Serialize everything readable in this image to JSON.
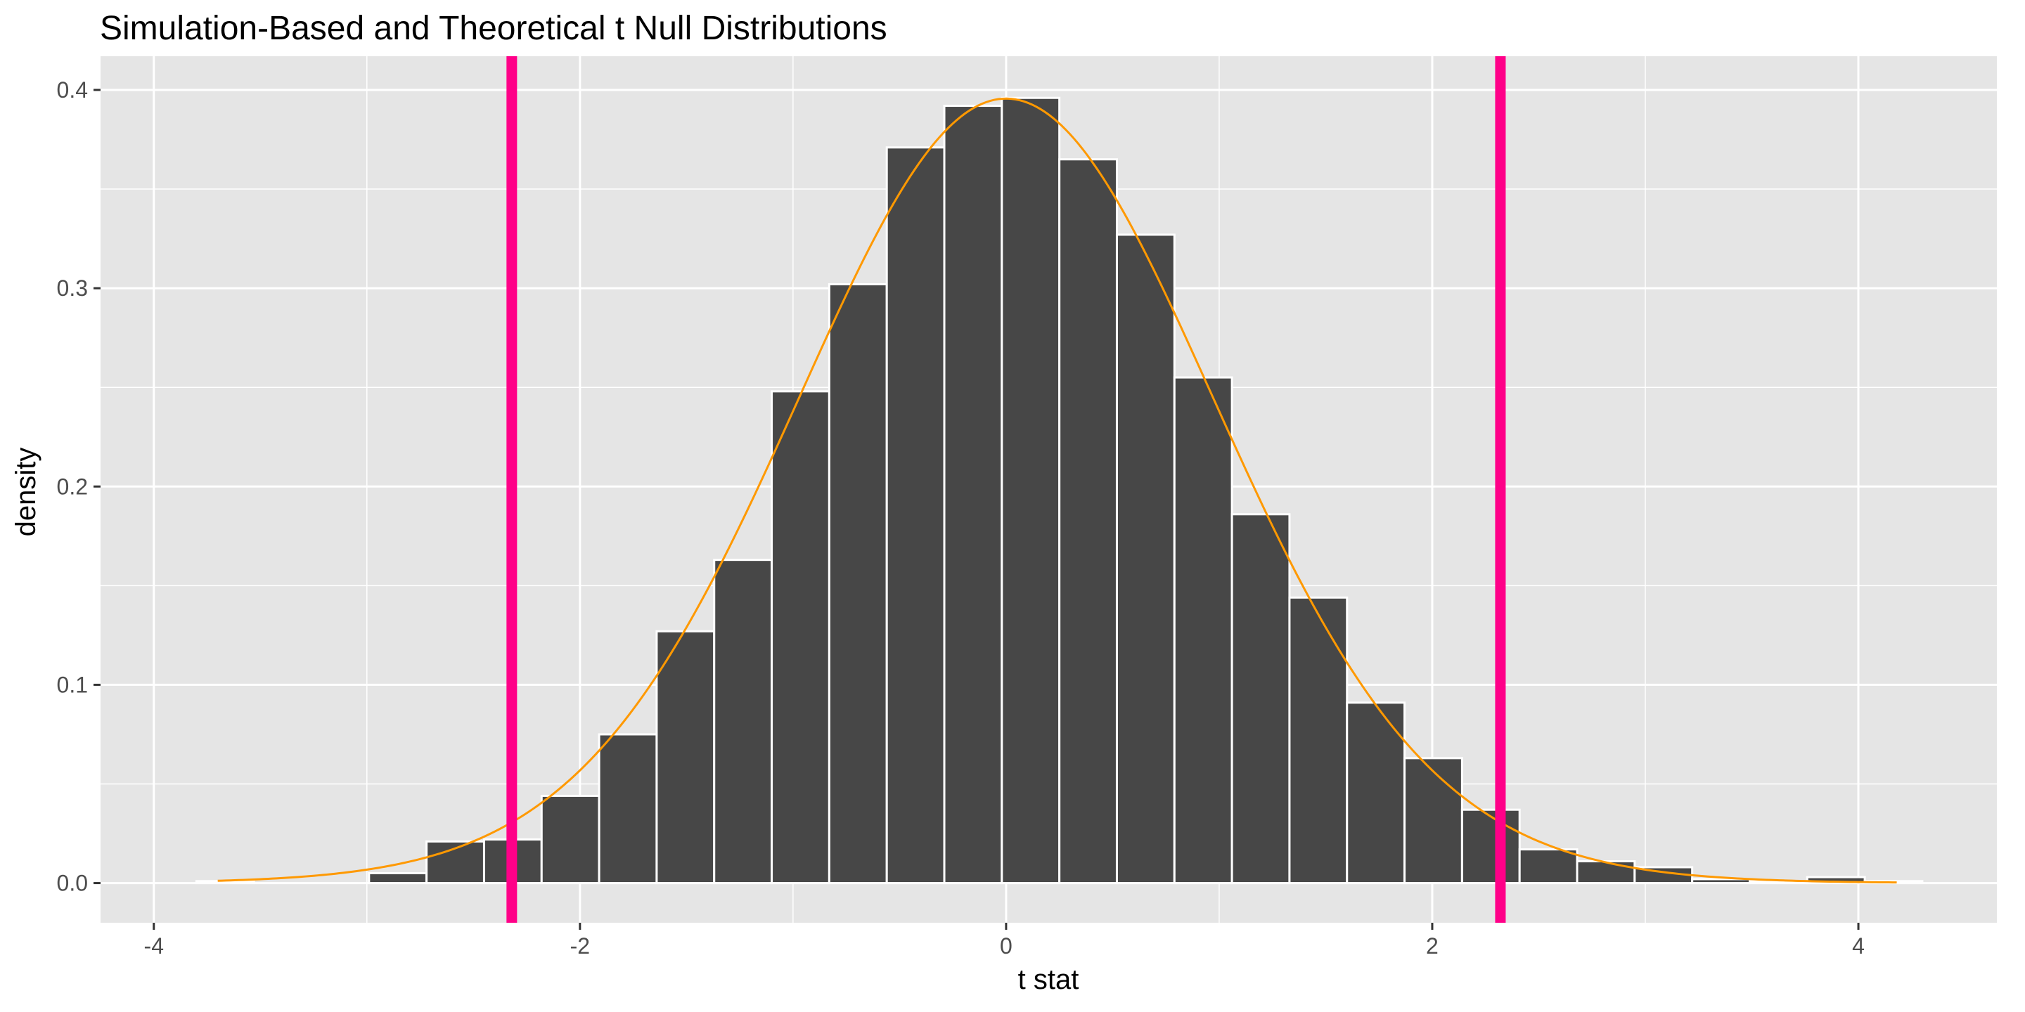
{
  "chart_data": {
    "type": "histogram",
    "title": "Simulation-Based and Theoretical t Null Distributions",
    "xlabel": "t stat",
    "ylabel": "density",
    "xlim": [
      -4.25,
      4.65
    ],
    "ylim": [
      -0.02,
      0.417
    ],
    "x_ticks": [
      -4,
      -2,
      0,
      2,
      4
    ],
    "x_tick_labels": [
      "-4",
      "-2",
      "0",
      "2",
      "4"
    ],
    "y_ticks": [
      0.0,
      0.1,
      0.2,
      0.3,
      0.4
    ],
    "y_tick_labels": [
      "0.0",
      "0.1",
      "0.2",
      "0.3",
      "0.4"
    ],
    "grid": true,
    "legend": "none",
    "colors": {
      "panel_background": "#e5e5e5",
      "grid": "#ffffff",
      "bar_fill": "#474747",
      "bar_outline": "#ffffff",
      "curve": "#ff9900",
      "reference_lines": "#ff0088"
    },
    "histogram": {
      "bins": [
        {
          "x0": -3.8,
          "x1": -3.53,
          "density": 0.001
        },
        {
          "x0": -3.53,
          "x1": -3.26,
          "density": 0.0
        },
        {
          "x0": -3.26,
          "x1": -2.99,
          "density": 0.0
        },
        {
          "x0": -2.99,
          "x1": -2.72,
          "density": 0.005
        },
        {
          "x0": -2.72,
          "x1": -2.45,
          "density": 0.021
        },
        {
          "x0": -2.45,
          "x1": -2.18,
          "density": 0.022
        },
        {
          "x0": -2.18,
          "x1": -1.91,
          "density": 0.044
        },
        {
          "x0": -1.91,
          "x1": -1.64,
          "density": 0.075
        },
        {
          "x0": -1.64,
          "x1": -1.37,
          "density": 0.127
        },
        {
          "x0": -1.37,
          "x1": -1.1,
          "density": 0.163
        },
        {
          "x0": -1.1,
          "x1": -0.83,
          "density": 0.248
        },
        {
          "x0": -0.83,
          "x1": -0.56,
          "density": 0.302
        },
        {
          "x0": -0.56,
          "x1": -0.29,
          "density": 0.371
        },
        {
          "x0": -0.29,
          "x1": -0.02,
          "density": 0.392
        },
        {
          "x0": -0.02,
          "x1": 0.25,
          "density": 0.396
        },
        {
          "x0": 0.25,
          "x1": 0.52,
          "density": 0.365
        },
        {
          "x0": 0.52,
          "x1": 0.79,
          "density": 0.327
        },
        {
          "x0": 0.79,
          "x1": 1.06,
          "density": 0.255
        },
        {
          "x0": 1.06,
          "x1": 1.33,
          "density": 0.186
        },
        {
          "x0": 1.33,
          "x1": 1.6,
          "density": 0.144
        },
        {
          "x0": 1.6,
          "x1": 1.87,
          "density": 0.091
        },
        {
          "x0": 1.87,
          "x1": 2.14,
          "density": 0.063
        },
        {
          "x0": 2.14,
          "x1": 2.41,
          "density": 0.037
        },
        {
          "x0": 2.41,
          "x1": 2.68,
          "density": 0.017
        },
        {
          "x0": 2.68,
          "x1": 2.95,
          "density": 0.011
        },
        {
          "x0": 2.95,
          "x1": 3.22,
          "density": 0.008
        },
        {
          "x0": 3.22,
          "x1": 3.49,
          "density": 0.002
        },
        {
          "x0": 3.49,
          "x1": 3.76,
          "density": 0.001
        },
        {
          "x0": 3.76,
          "x1": 4.03,
          "density": 0.003
        },
        {
          "x0": 4.03,
          "x1": 4.3,
          "density": 0.001
        }
      ]
    },
    "theoretical_curve": {
      "distribution": "t",
      "x_range": [
        -3.7,
        4.18
      ],
      "peak": [
        0,
        0.397
      ]
    },
    "reference_lines": [
      {
        "x": -2.32
      },
      {
        "x": 2.32
      }
    ]
  }
}
